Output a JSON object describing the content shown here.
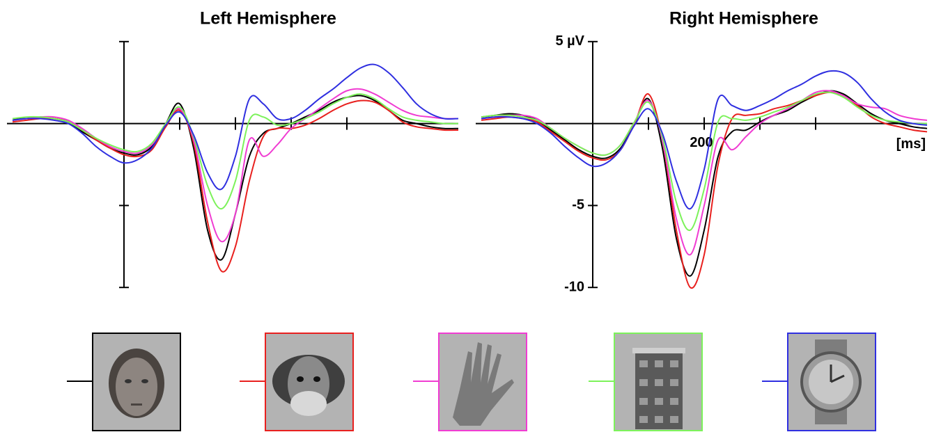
{
  "chart_data": [
    {
      "type": "line",
      "title": "Left Hemisphere",
      "x": [
        -200,
        -175,
        -150,
        -125,
        -100,
        -75,
        -50,
        -25,
        0,
        25,
        50,
        75,
        100,
        125,
        150,
        175,
        200,
        225,
        250,
        275,
        300,
        325,
        350,
        375,
        400,
        425,
        450,
        475,
        500,
        525,
        550,
        575,
        600
      ],
      "xlim": [
        -210,
        600
      ],
      "ylim": [
        -10.5,
        5.5
      ],
      "xticks": [
        {
          "value": 100
        },
        {
          "value": 200
        },
        {
          "value": 300
        },
        {
          "value": 400
        }
      ],
      "yticks": [
        {
          "value": 5
        },
        {
          "value": -5
        },
        {
          "value": -10
        }
      ],
      "series": [
        {
          "color": "#000000",
          "values": [
            0.3,
            0.3,
            0.4,
            0.3,
            0.1,
            -0.5,
            -1.0,
            -1.5,
            -1.8,
            -1.9,
            -1.4,
            0,
            1.2,
            -1.5,
            -6.5,
            -8.3,
            -5.5,
            -2.0,
            -0.6,
            -0.3,
            0,
            0.4,
            0.8,
            1.3,
            1.6,
            1.7,
            1.4,
            0.8,
            0.2,
            0,
            -0.2,
            -0.3,
            -0.3
          ]
        },
        {
          "color": "#e8201e",
          "values": [
            0.1,
            0.2,
            0.3,
            0.3,
            0.1,
            -0.4,
            -1.0,
            -1.5,
            -1.9,
            -2.0,
            -1.6,
            -0.2,
            0.8,
            -1.2,
            -6.0,
            -9.0,
            -7.5,
            -3.5,
            -0.8,
            -0.3,
            -0.3,
            -0.1,
            0.3,
            0.8,
            1.2,
            1.4,
            1.3,
            0.8,
            0.1,
            -0.2,
            -0.3,
            -0.4,
            -0.4
          ]
        },
        {
          "color": "#f03cd2",
          "values": [
            0.2,
            0.3,
            0.4,
            0.4,
            0.2,
            -0.3,
            -0.9,
            -1.4,
            -1.7,
            -1.8,
            -1.3,
            0,
            0.9,
            -1.0,
            -5.0,
            -7.2,
            -5.5,
            -1.0,
            -2.0,
            -1.3,
            -0.3,
            0.3,
            0.9,
            1.5,
            2.0,
            2.1,
            1.8,
            1.3,
            0.8,
            0.5,
            0.4,
            0.3,
            0.3
          ]
        },
        {
          "color": "#7cf25a",
          "values": [
            0.3,
            0.4,
            0.4,
            0.3,
            0.1,
            -0.4,
            -0.9,
            -1.3,
            -1.6,
            -1.7,
            -1.2,
            0,
            1.0,
            -0.8,
            -3.8,
            -5.2,
            -3.5,
            0.2,
            0.4,
            -0.1,
            0,
            0.3,
            0.7,
            1.2,
            1.6,
            1.8,
            1.5,
            0.9,
            0.4,
            0.2,
            0.1,
            0,
            0
          ]
        },
        {
          "color": "#2f2fe0",
          "values": [
            0.2,
            0.3,
            0.3,
            0.2,
            0,
            -0.6,
            -1.4,
            -2.0,
            -2.4,
            -2.2,
            -1.5,
            -0.1,
            0.7,
            -0.7,
            -3.0,
            -4.0,
            -2.0,
            1.5,
            1.2,
            0.3,
            0.3,
            0.8,
            1.5,
            2.1,
            2.8,
            3.4,
            3.6,
            3.1,
            2.2,
            1.2,
            0.6,
            0.3,
            0.3
          ]
        }
      ]
    },
    {
      "type": "line",
      "title": "Right  Hemisphere",
      "xlabel": "[ms]",
      "x": [
        -200,
        -175,
        -150,
        -125,
        -100,
        -75,
        -50,
        -25,
        0,
        25,
        50,
        75,
        100,
        125,
        150,
        175,
        200,
        225,
        250,
        275,
        300,
        325,
        350,
        375,
        400,
        425,
        450,
        475,
        500,
        525,
        550,
        575,
        600
      ],
      "xlim": [
        -210,
        600
      ],
      "ylim": [
        -10.5,
        5.5
      ],
      "xticks": [
        {
          "value": 100
        },
        {
          "value": 200,
          "label": "200"
        },
        {
          "value": 300
        },
        {
          "value": 400
        }
      ],
      "yticks": [
        {
          "value": 5,
          "label": "5 µV"
        },
        {
          "value": -5,
          "label": "-5"
        },
        {
          "value": -10,
          "label": "-10"
        }
      ],
      "series": [
        {
          "color": "#000000",
          "values": [
            0.4,
            0.5,
            0.6,
            0.5,
            0.2,
            -0.4,
            -1.0,
            -1.6,
            -2.0,
            -2.1,
            -1.5,
            0,
            1.5,
            -1.5,
            -7.0,
            -9.3,
            -6.5,
            -2.0,
            -0.5,
            -0.4,
            0.1,
            0.5,
            0.8,
            1.3,
            1.7,
            2.0,
            1.8,
            1.2,
            0.6,
            0.2,
            0,
            -0.2,
            -0.3
          ]
        },
        {
          "color": "#e8201e",
          "values": [
            0.2,
            0.3,
            0.4,
            0.3,
            0.1,
            -0.5,
            -1.1,
            -1.7,
            -2.1,
            -2.2,
            -1.6,
            0,
            1.8,
            -1.0,
            -6.5,
            -10.0,
            -8.0,
            -2.5,
            0.3,
            0.5,
            0.6,
            0.9,
            1.1,
            1.4,
            1.7,
            1.9,
            1.7,
            1.1,
            0.4,
            0,
            -0.2,
            -0.4,
            -0.5
          ]
        },
        {
          "color": "#f03cd2",
          "values": [
            0.3,
            0.4,
            0.5,
            0.5,
            0.3,
            -0.3,
            -0.9,
            -1.4,
            -1.8,
            -1.9,
            -1.3,
            0.1,
            1.4,
            -1.0,
            -5.8,
            -8.0,
            -5.0,
            -1.0,
            -1.6,
            -0.8,
            0,
            0.5,
            0.9,
            1.4,
            1.9,
            2.0,
            1.7,
            1.2,
            1.0,
            0.9,
            0.5,
            0.3,
            0.2
          ]
        },
        {
          "color": "#7cf25a",
          "values": [
            0.4,
            0.5,
            0.5,
            0.4,
            0.2,
            -0.3,
            -0.9,
            -1.4,
            -1.8,
            -1.9,
            -1.3,
            0.1,
            1.3,
            -0.8,
            -4.8,
            -6.5,
            -4.0,
            0.1,
            0.3,
            0.2,
            0.4,
            0.7,
            1.0,
            1.4,
            1.8,
            1.9,
            1.6,
            1.0,
            0.5,
            0.2,
            0.1,
            0,
            0
          ]
        },
        {
          "color": "#2f2fe0",
          "values": [
            0.3,
            0.4,
            0.4,
            0.3,
            0,
            -0.6,
            -1.4,
            -2.1,
            -2.6,
            -2.4,
            -1.6,
            -0.1,
            0.9,
            -0.6,
            -3.5,
            -5.2,
            -2.8,
            1.5,
            1.1,
            0.8,
            1.1,
            1.5,
            2.0,
            2.4,
            2.9,
            3.2,
            3.1,
            2.5,
            1.5,
            0.7,
            0.2,
            0,
            -0.1
          ]
        }
      ]
    }
  ]
}
